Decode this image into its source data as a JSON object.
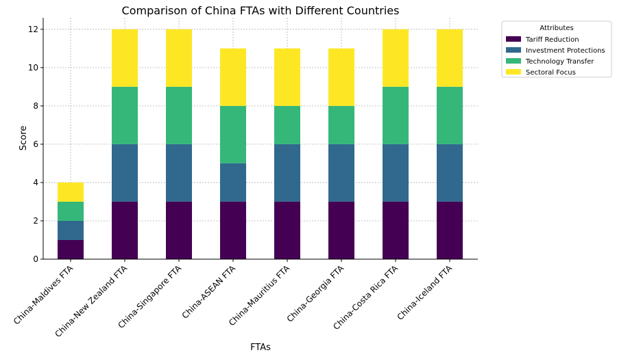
{
  "chart_data": {
    "type": "bar",
    "stacked": true,
    "title": "Comparison of China FTAs with Different Countries",
    "xlabel": "FTAs",
    "ylabel": "Score",
    "ylim": [
      0,
      12.6
    ],
    "yticks": [
      0,
      2,
      4,
      6,
      8,
      10,
      12
    ],
    "grid": true,
    "legend": {
      "title": "Attributes",
      "placement": "outside-top-right"
    },
    "categories": [
      "China-Maldives FTA",
      "China-New Zealand FTA",
      "China-Singapore FTA",
      "China-ASEAN FTA",
      "China-Mauritius FTA",
      "China-Georgia FTA",
      "China-Costa Rica FTA",
      "China-Iceland FTA"
    ],
    "series": [
      {
        "name": "Tariff Reduction",
        "color": "#440154",
        "values": [
          1,
          3,
          3,
          3,
          3,
          3,
          3,
          3
        ]
      },
      {
        "name": "Investment Protections",
        "color": "#31688e",
        "values": [
          1,
          3,
          3,
          2,
          3,
          3,
          3,
          3
        ]
      },
      {
        "name": "Technology Transfer",
        "color": "#35b779",
        "values": [
          1,
          3,
          3,
          3,
          2,
          2,
          3,
          3
        ]
      },
      {
        "name": "Sectoral Focus",
        "color": "#fde725",
        "values": [
          1,
          3,
          3,
          3,
          3,
          3,
          3,
          3
        ]
      }
    ]
  }
}
